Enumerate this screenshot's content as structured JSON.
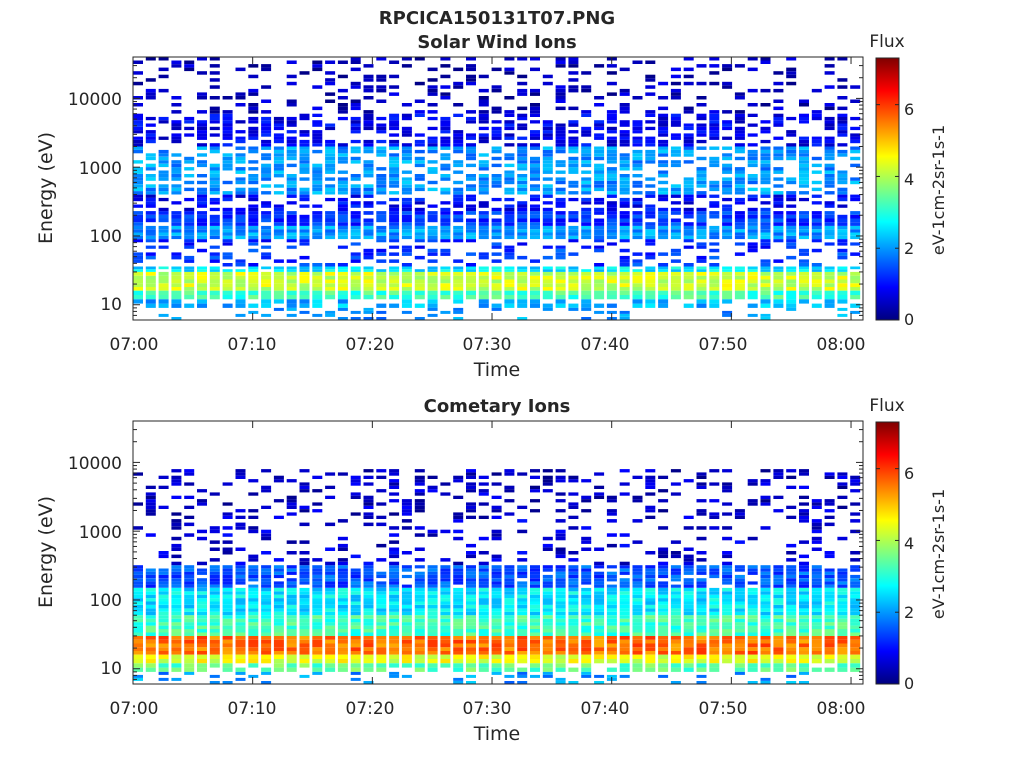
{
  "figure": {
    "title": "RPCICA150131T07.PNG"
  },
  "chart_data": [
    {
      "type": "heatmap",
      "title": "Solar Wind Ions",
      "xlabel": "Time",
      "ylabel": "Energy (eV)",
      "y_scale": "log",
      "ylim": [
        6,
        40000
      ],
      "xlim": [
        "07:00",
        "08:01"
      ],
      "x_ticks": [
        "07:00",
        "07:10",
        "07:20",
        "07:30",
        "07:40",
        "07:50",
        "08:00"
      ],
      "y_ticks": [
        "10",
        "100",
        "1000",
        "10000"
      ],
      "colorbar": {
        "title": "Flux",
        "label": "eV-1cm-2sr-1s-1",
        "colormap": "jet",
        "range": [
          0,
          7.3
        ],
        "ticks": [
          "0",
          "2",
          "4",
          "6"
        ]
      },
      "bands": [
        {
          "lo": 16,
          "hi": 30,
          "value": 4.2,
          "coverage": 1.0
        },
        {
          "lo": 12,
          "hi": 16,
          "value": 3.2,
          "coverage": 1.0
        },
        {
          "lo": 9,
          "hi": 12,
          "value": 2.2,
          "coverage": 0.7
        },
        {
          "lo": 6,
          "hi": 9,
          "value": 2.0,
          "coverage": 0.2
        },
        {
          "lo": 30,
          "hi": 36,
          "value": 2.6,
          "coverage": 0.9
        },
        {
          "lo": 36,
          "hi": 65,
          "value": 1.3,
          "coverage": 0.35
        },
        {
          "lo": 65,
          "hi": 90,
          "value": 1.2,
          "coverage": 0.45
        },
        {
          "lo": 90,
          "hi": 140,
          "value": 2.0,
          "coverage": 1.0
        },
        {
          "lo": 140,
          "hi": 230,
          "value": 1.3,
          "coverage": 0.95
        },
        {
          "lo": 230,
          "hi": 400,
          "value": 0.9,
          "coverage": 0.6
        },
        {
          "lo": 400,
          "hi": 2000,
          "value": 2.0,
          "coverage": 0.7
        },
        {
          "lo": 2000,
          "hi": 6000,
          "value": 0.8,
          "coverage": 0.6
        },
        {
          "lo": 6000,
          "hi": 40000,
          "value": 0.4,
          "coverage": 0.3
        }
      ]
    },
    {
      "type": "heatmap",
      "title": "Cometary Ions",
      "xlabel": "Time",
      "ylabel": "Energy (eV)",
      "y_scale": "log",
      "ylim": [
        6,
        40000
      ],
      "xlim": [
        "07:00",
        "08:01"
      ],
      "x_ticks": [
        "07:00",
        "07:10",
        "07:20",
        "07:30",
        "07:40",
        "07:50",
        "08:00"
      ],
      "y_ticks": [
        "10",
        "100",
        "1000",
        "10000"
      ],
      "colorbar": {
        "title": "Flux",
        "label": "eV-1cm-2sr-1s-1",
        "colormap": "jet",
        "range": [
          0,
          7.3
        ],
        "ticks": [
          "0",
          "2",
          "4",
          "6"
        ]
      },
      "bands": [
        {
          "lo": 16,
          "hi": 30,
          "value": 5.6,
          "coverage": 1.0
        },
        {
          "lo": 12,
          "hi": 16,
          "value": 4.4,
          "coverage": 1.0
        },
        {
          "lo": 9,
          "hi": 12,
          "value": 3.4,
          "coverage": 0.85
        },
        {
          "lo": 6,
          "hi": 9,
          "value": 2.0,
          "coverage": 0.2
        },
        {
          "lo": 30,
          "hi": 60,
          "value": 3.2,
          "coverage": 1.0
        },
        {
          "lo": 60,
          "hi": 150,
          "value": 2.6,
          "coverage": 1.0
        },
        {
          "lo": 150,
          "hi": 320,
          "value": 1.5,
          "coverage": 0.9
        },
        {
          "lo": 320,
          "hi": 1500,
          "value": 0.6,
          "coverage": 0.25
        },
        {
          "lo": 1500,
          "hi": 8000,
          "value": 0.5,
          "coverage": 0.35
        }
      ]
    }
  ]
}
